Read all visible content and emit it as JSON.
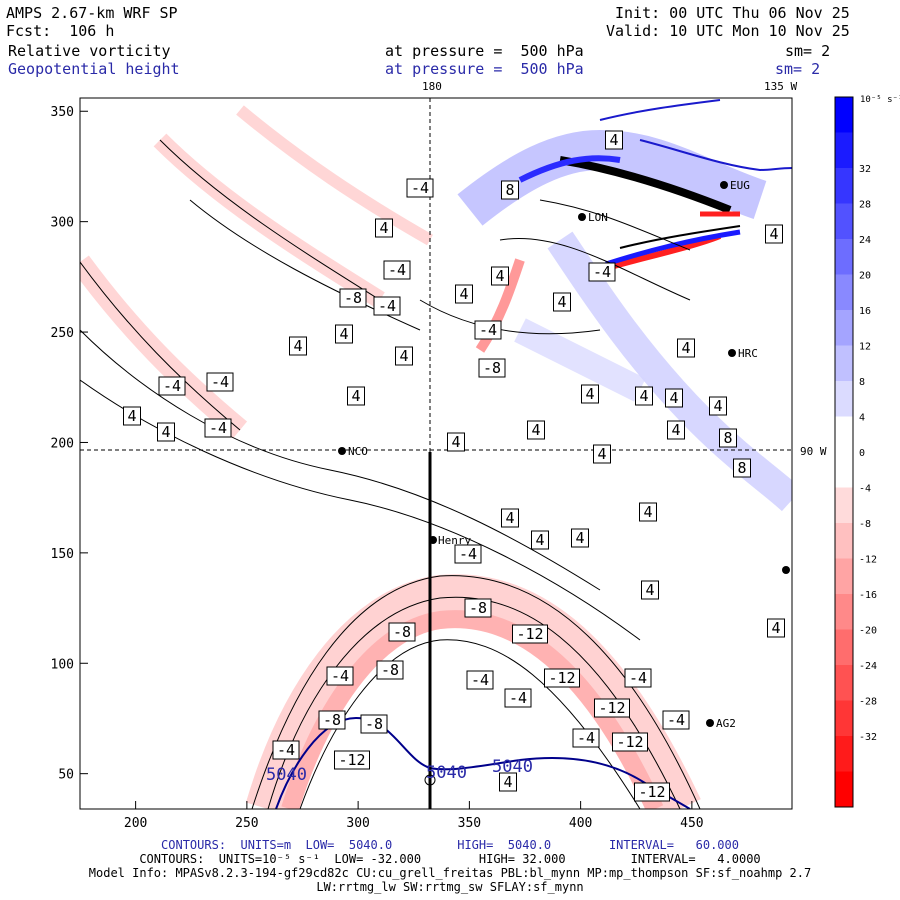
{
  "header": {
    "model": "AMPS 2.67-km WRF SP",
    "forecast": "Fcst:  106 h",
    "init": "Init: 00 UTC Thu 06 Nov 25",
    "valid": "Valid: 10 UTC Mon 10 Nov 25",
    "field1_name": "Relative vorticity",
    "field1_level": "at pressure =  500 hPa",
    "field1_sm": "sm= 2",
    "field2_name": "Geopotential height",
    "field2_level": "at pressure =  500 hPa",
    "field2_sm": "sm= 2"
  },
  "map_labels": {
    "lon_180": "180",
    "lon_135w": "135 W",
    "lon_90w": "90 W",
    "stations": [
      "NCO",
      "Henry",
      "HRC",
      "AG2",
      "LON",
      "EUG"
    ]
  },
  "chart_data": {
    "type": "contour",
    "x_ticks": [
      200,
      250,
      300,
      350,
      400,
      450
    ],
    "y_ticks": [
      50,
      100,
      150,
      200,
      250,
      300,
      350
    ],
    "xlim": [
      175,
      495
    ],
    "ylim": [
      34,
      356
    ],
    "vorticity_contour_labels": [
      {
        "x": 172,
        "y": 386,
        "v": "-4"
      },
      {
        "x": 220,
        "y": 382,
        "v": "-4"
      },
      {
        "x": 132,
        "y": 416,
        "v": "4"
      },
      {
        "x": 166,
        "y": 432,
        "v": "4"
      },
      {
        "x": 218,
        "y": 428,
        "v": "-4"
      },
      {
        "x": 298,
        "y": 346,
        "v": "4"
      },
      {
        "x": 344,
        "y": 334,
        "v": "4"
      },
      {
        "x": 356,
        "y": 396,
        "v": "4"
      },
      {
        "x": 353,
        "y": 298,
        "v": "-8"
      },
      {
        "x": 387,
        "y": 306,
        "v": "-4"
      },
      {
        "x": 384,
        "y": 228,
        "v": "4"
      },
      {
        "x": 397,
        "y": 270,
        "v": "-4"
      },
      {
        "x": 420,
        "y": 188,
        "v": "-4"
      },
      {
        "x": 404,
        "y": 356,
        "v": "4"
      },
      {
        "x": 464,
        "y": 294,
        "v": "4"
      },
      {
        "x": 500,
        "y": 276,
        "v": "4"
      },
      {
        "x": 510,
        "y": 190,
        "v": "8"
      },
      {
        "x": 488,
        "y": 330,
        "v": "-4"
      },
      {
        "x": 492,
        "y": 368,
        "v": "-8"
      },
      {
        "x": 456,
        "y": 442,
        "v": "4"
      },
      {
        "x": 536,
        "y": 430,
        "v": "4"
      },
      {
        "x": 562,
        "y": 302,
        "v": "4"
      },
      {
        "x": 590,
        "y": 394,
        "v": "4"
      },
      {
        "x": 602,
        "y": 272,
        "v": "-4"
      },
      {
        "x": 602,
        "y": 454,
        "v": "4"
      },
      {
        "x": 614,
        "y": 140,
        "v": "4"
      },
      {
        "x": 644,
        "y": 396,
        "v": "4"
      },
      {
        "x": 674,
        "y": 398,
        "v": "4"
      },
      {
        "x": 676,
        "y": 430,
        "v": "4"
      },
      {
        "x": 686,
        "y": 348,
        "v": "4"
      },
      {
        "x": 718,
        "y": 406,
        "v": "4"
      },
      {
        "x": 728,
        "y": 438,
        "v": "8"
      },
      {
        "x": 742,
        "y": 468,
        "v": "8"
      },
      {
        "x": 774,
        "y": 234,
        "v": "4"
      },
      {
        "x": 510,
        "y": 518,
        "v": "4"
      },
      {
        "x": 540,
        "y": 540,
        "v": "4"
      },
      {
        "x": 580,
        "y": 538,
        "v": "4"
      },
      {
        "x": 648,
        "y": 512,
        "v": "4"
      },
      {
        "x": 650,
        "y": 590,
        "v": "4"
      },
      {
        "x": 468,
        "y": 554,
        "v": "-4"
      },
      {
        "x": 478,
        "y": 608,
        "v": "-8"
      },
      {
        "x": 402,
        "y": 632,
        "v": "-8"
      },
      {
        "x": 530,
        "y": 634,
        "v": "-12"
      },
      {
        "x": 390,
        "y": 670,
        "v": "-8"
      },
      {
        "x": 340,
        "y": 676,
        "v": "-4"
      },
      {
        "x": 480,
        "y": 680,
        "v": "-4"
      },
      {
        "x": 562,
        "y": 678,
        "v": "-12"
      },
      {
        "x": 638,
        "y": 678,
        "v": "-4"
      },
      {
        "x": 518,
        "y": 698,
        "v": "-4"
      },
      {
        "x": 612,
        "y": 708,
        "v": "-12"
      },
      {
        "x": 676,
        "y": 720,
        "v": "-4"
      },
      {
        "x": 332,
        "y": 720,
        "v": "-8"
      },
      {
        "x": 374,
        "y": 724,
        "v": "-8"
      },
      {
        "x": 586,
        "y": 738,
        "v": "-4"
      },
      {
        "x": 630,
        "y": 742,
        "v": "-12"
      },
      {
        "x": 286,
        "y": 750,
        "v": "-4"
      },
      {
        "x": 352,
        "y": 760,
        "v": "-12"
      },
      {
        "x": 508,
        "y": 782,
        "v": "4"
      },
      {
        "x": 652,
        "y": 792,
        "v": "-12"
      },
      {
        "x": 776,
        "y": 628,
        "v": "4"
      }
    ],
    "height_contour_labels": [
      "5040",
      "5040",
      "5040"
    ]
  },
  "colorbar": {
    "unit_label": "10⁻⁵ s⁻¹",
    "ticks": [
      "32",
      "28",
      "24",
      "20",
      "16",
      "12",
      "8",
      "4",
      "0",
      "-4",
      "-8",
      "-12",
      "-16",
      "-20",
      "-24",
      "-28",
      "-32"
    ],
    "colors": [
      "#0000ff",
      "#1b1bff",
      "#3636ff",
      "#5252ff",
      "#6d6dff",
      "#8989ff",
      "#a4a4ff",
      "#c0c0ff",
      "#dbdbff",
      "#ffffff",
      "#ffffff",
      "#ffdbdb",
      "#ffc0c0",
      "#ffa4a4",
      "#ff8989",
      "#ff6d6d",
      "#ff5252",
      "#ff3636",
      "#ff1b1b",
      "#ff0000"
    ]
  },
  "footer": {
    "contours1": "CONTOURS:  UNITS=m  LOW=  5040.0         HIGH=  5040.0        INTERVAL=   60.000",
    "contours2": "CONTOURS:  UNITS=10⁻⁵ s⁻¹  LOW= -32.000        HIGH= 32.000         INTERVAL=   4.0000",
    "model_info": "Model Info: MPASv8.2.3-194-gf29cd82c CU:cu_grell_freitas PBL:bl_mynn MP:mp_thompson SF:sf_noahmp 2.7",
    "model_info2": "LW:rrtmg_lw SW:rrtmg_sw SFLAY:sf_mynn"
  }
}
